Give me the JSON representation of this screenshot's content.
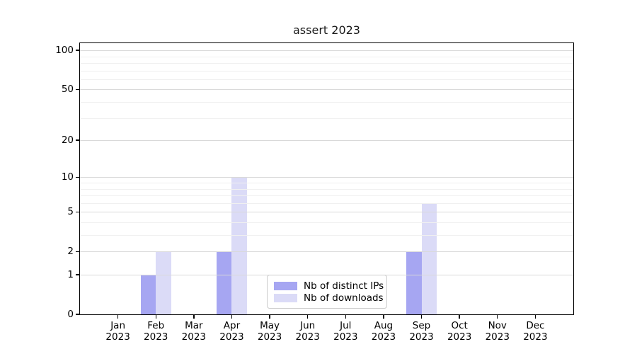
{
  "chart_data": {
    "type": "bar",
    "title": "assert 2023",
    "categories": [
      "Jan 2023",
      "Feb 2023",
      "Mar 2023",
      "Apr 2023",
      "May 2023",
      "Jun 2023",
      "Jul 2023",
      "Aug 2023",
      "Sep 2023",
      "Oct 2023",
      "Nov 2023",
      "Dec 2023"
    ],
    "series": [
      {
        "name": "Nb of distinct IPs",
        "color": "#a6a6f2",
        "values": [
          0,
          1,
          0,
          2,
          0,
          0,
          0,
          0,
          2,
          0,
          0,
          0
        ]
      },
      {
        "name": "Nb of downloads",
        "color": "#dbdbf7",
        "values": [
          0,
          2,
          0,
          10,
          0,
          0,
          0,
          0,
          6,
          0,
          0,
          0
        ]
      }
    ],
    "xlabel": "",
    "ylabel": "",
    "y_axis": {
      "scale": "log1p",
      "major_ticks": [
        0,
        1,
        2,
        5,
        10,
        20,
        50,
        100
      ],
      "minor_gridlines": [
        3,
        4,
        6,
        7,
        8,
        9,
        30,
        40,
        60,
        70,
        80,
        90
      ],
      "ylim": [
        0,
        114
      ]
    },
    "grid": "on",
    "legend_position": "lower center"
  },
  "colors": {
    "background": "#ffffff",
    "major_grid": "#d9d9d9",
    "minor_grid": "#f0f0f0",
    "spine": "#000000",
    "legend_border": "#cccccc",
    "text": "#000000"
  }
}
